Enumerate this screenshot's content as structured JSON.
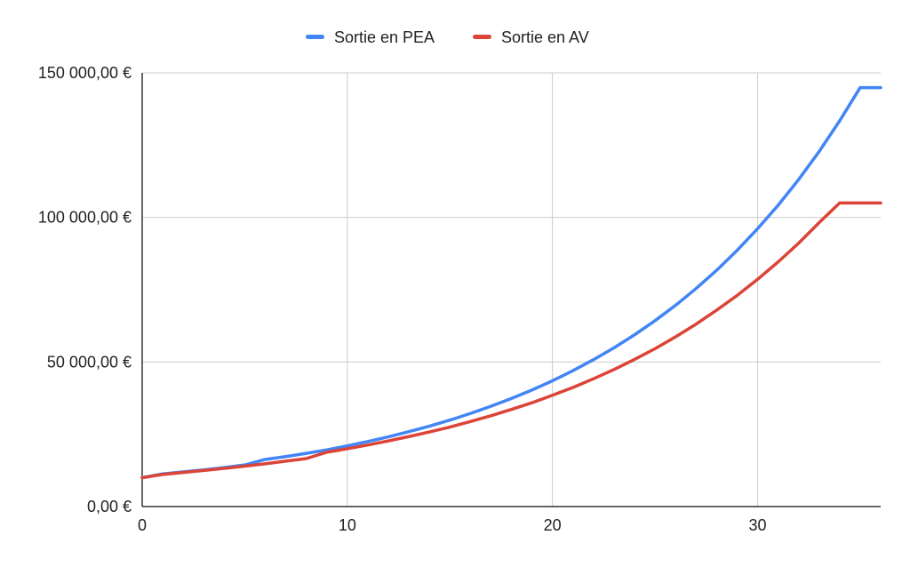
{
  "chart_data": {
    "type": "line",
    "title": "",
    "xlabel": "",
    "ylabel": "",
    "xlim": [
      0,
      36
    ],
    "ylim": [
      0,
      150000
    ],
    "x_ticks": [
      0,
      10,
      20,
      30
    ],
    "x_tick_labels": [
      "0",
      "10",
      "20",
      "30"
    ],
    "y_ticks": [
      0,
      50000,
      100000,
      150000
    ],
    "y_tick_labels": [
      "0,00 €",
      "50 000,00 €",
      "100 000,00 €",
      "150 000,00 €"
    ],
    "grid": true,
    "legend_position": "top",
    "x": [
      0,
      1,
      2,
      3,
      4,
      5,
      6,
      7,
      8,
      9,
      10,
      11,
      12,
      13,
      14,
      15,
      16,
      17,
      18,
      19,
      20,
      21,
      22,
      23,
      24,
      25,
      26,
      27,
      28,
      29,
      30,
      31,
      32,
      33,
      34,
      35,
      36
    ],
    "series": [
      {
        "name": "Sortie en PEA",
        "color": "#4285f4",
        "values": [
          10000,
          11300,
          12000,
          12700,
          13500,
          14400,
          16300,
          17300,
          18400,
          19600,
          21000,
          22500,
          24100,
          25900,
          27800,
          29900,
          32200,
          34700,
          37400,
          40300,
          43500,
          47000,
          50800,
          54900,
          59400,
          64300,
          69600,
          75400,
          81700,
          88600,
          96100,
          104200,
          113100,
          122800,
          133400,
          144900,
          144900
        ]
      },
      {
        "name": "Sortie en AV",
        "color": "#db4437",
        "values": [
          10000,
          11100,
          11800,
          12500,
          13200,
          14000,
          14800,
          15700,
          16600,
          18800,
          20000,
          21300,
          22700,
          24200,
          25800,
          27500,
          29400,
          31400,
          33600,
          35900,
          38500,
          41200,
          44200,
          47400,
          50900,
          54600,
          58700,
          63100,
          67900,
          73000,
          78600,
          84600,
          91100,
          98200,
          105000,
          105000,
          105000
        ]
      }
    ]
  }
}
